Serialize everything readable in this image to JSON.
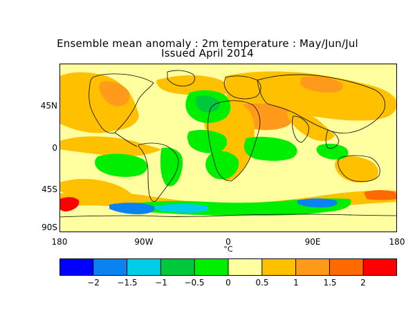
{
  "title": {
    "line1": "Ensemble mean anomaly : 2m temperature : May/Jun/Jul",
    "line2": "Issued April 2014"
  },
  "axes": {
    "y_labels": [
      "45N",
      "0",
      "45S",
      "90S"
    ],
    "x_labels": [
      "180",
      "90W",
      "0",
      "90E",
      "180"
    ]
  },
  "unit": "°C",
  "colorbar": {
    "colors": [
      "#0000ff",
      "#0a82f0",
      "#00cde8",
      "#00c83c",
      "#00ee00",
      "#ffffa0",
      "#ffc000",
      "#ff9a1a",
      "#ff6a00",
      "#ff0000"
    ],
    "labels": [
      "−2",
      "−1.5",
      "−1",
      "−0.5",
      "0",
      "0.5",
      "1",
      "1.5",
      "2"
    ]
  },
  "map_colors": {
    "ocean": "#ffffa0",
    "warm_1": "#ffc000",
    "warm_2": "#ff9a1a",
    "warm_3": "#ff6a00",
    "hot": "#ff0000",
    "cool_0": "#00ee00",
    "cool_1": "#00c83c",
    "cool_2": "#00cde8",
    "cool_3": "#0a82f0",
    "cold": "#0000ff",
    "outline": "#000000"
  }
}
